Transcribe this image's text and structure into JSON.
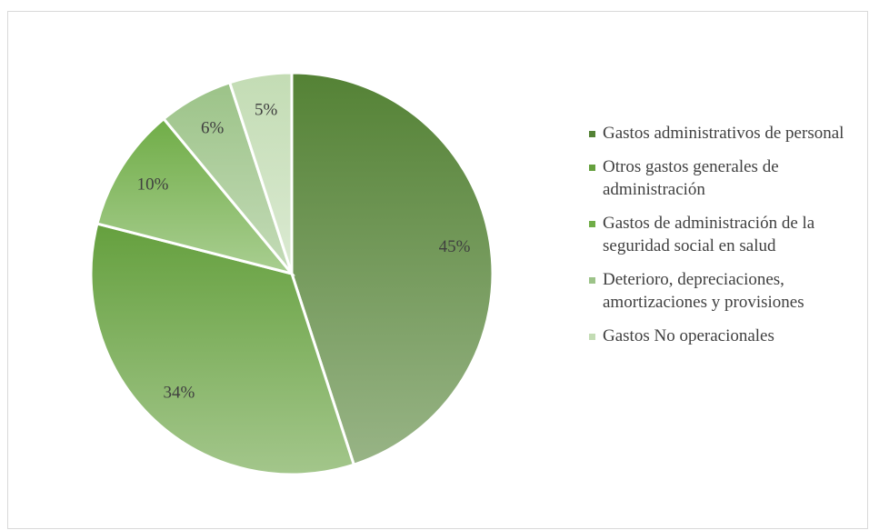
{
  "chart_data": {
    "type": "pie",
    "categories": [
      "Gastos administrativos de personal",
      "Otros gastos generales de administración",
      "Gastos de administración de la seguridad social en salud",
      "Deterioro, depreciaciones, amortizaciones y provisiones",
      "Gastos No operacionales"
    ],
    "values": [
      45,
      34,
      10,
      6,
      5
    ],
    "value_labels": [
      "45%",
      "34%",
      "10%",
      "6%",
      "5%"
    ],
    "colors": [
      "#548235",
      "#65a03e",
      "#70ad47",
      "#9cc388",
      "#c3dcb4"
    ],
    "legend": "right"
  }
}
